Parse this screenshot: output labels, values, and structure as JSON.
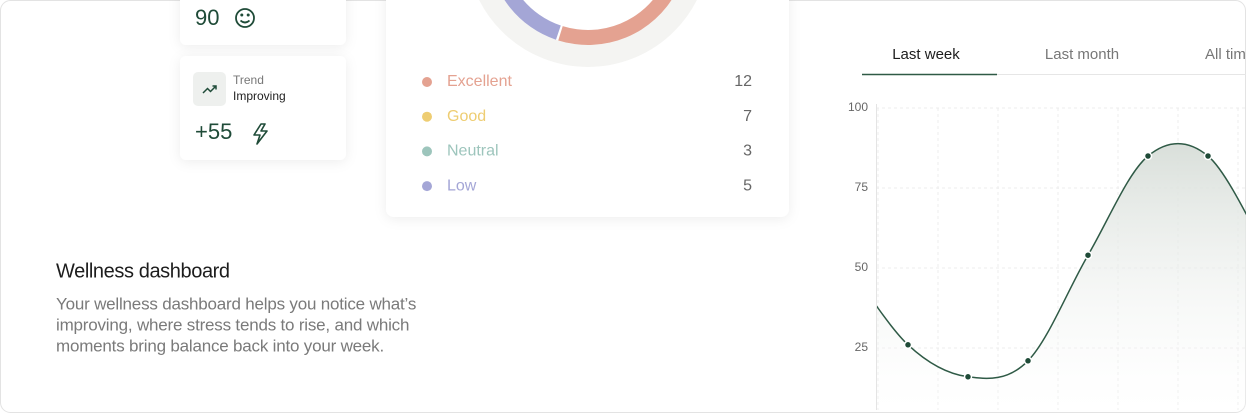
{
  "score": 90,
  "trend": {
    "label": "Trend",
    "status": "Improving",
    "delta": "+55"
  },
  "section": {
    "title": "Wellness dashboard",
    "description": [
      "Your wellness dashboard helps you notice what’s",
      "improving, where stress tends to rise, and which",
      "moments bring balance back into your week."
    ]
  },
  "tabs": {
    "items": [
      "Last week",
      "Last month",
      "All time"
    ],
    "active": 0
  },
  "chart_data": [
    {
      "type": "pie",
      "categories": [
        "Excellent",
        "Good",
        "Neutral",
        "Low"
      ],
      "values": [
        12,
        7,
        3,
        5
      ],
      "colors": [
        "#e4a291",
        "#eecd72",
        "#9dc5bc",
        "#a4a6d6"
      ]
    },
    {
      "type": "line",
      "categories": [
        null,
        null,
        null,
        null,
        null,
        null
      ],
      "series": [
        {
          "color": "#2f5a46",
          "values": [
            26,
            16,
            21,
            54,
            85,
            85
          ]
        }
      ],
      "ylim": [
        5,
        100
      ],
      "yticks": [
        25,
        50,
        75,
        100
      ],
      "grid": true
    }
  ]
}
